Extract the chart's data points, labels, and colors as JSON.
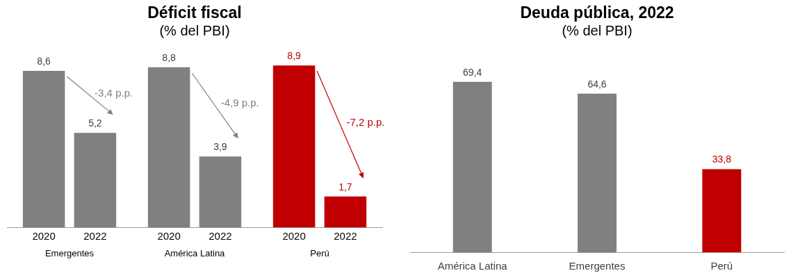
{
  "chart_data": [
    {
      "type": "bar",
      "title": "Déficit fiscal",
      "subtitle": "(% del PBI)",
      "categories": [
        "Emergentes",
        "América Latina",
        "Perú"
      ],
      "series": [
        {
          "name": "2020",
          "colors": [
            "#808080",
            "#808080",
            "#c00000"
          ],
          "values": [
            8.6,
            8.8,
            8.9
          ],
          "value_labels": [
            "8,6",
            "8,8",
            "8,9"
          ]
        },
        {
          "name": "2022",
          "colors": [
            "#808080",
            "#808080",
            "#c00000"
          ],
          "values": [
            5.2,
            3.9,
            1.7
          ],
          "value_labels": [
            "5,2",
            "3,9",
            "1,7"
          ]
        }
      ],
      "annotations": [
        "-3,4 p.p.",
        "-4,9 p.p.",
        "-7,2 p.p."
      ],
      "tick_labels": "x",
      "grid": false,
      "legend": false
    },
    {
      "type": "bar",
      "title": "Deuda pública, 2022",
      "subtitle": "(% del PBI)",
      "categories": [
        "América Latina",
        "Emergentes",
        "Perú"
      ],
      "values": [
        69.4,
        64.6,
        33.8
      ],
      "colors": [
        "#808080",
        "#808080",
        "#c00000"
      ],
      "value_labels": [
        "69,4",
        "64,6",
        "33,8"
      ],
      "tick_labels": "x",
      "grid": false,
      "legend": false
    }
  ]
}
